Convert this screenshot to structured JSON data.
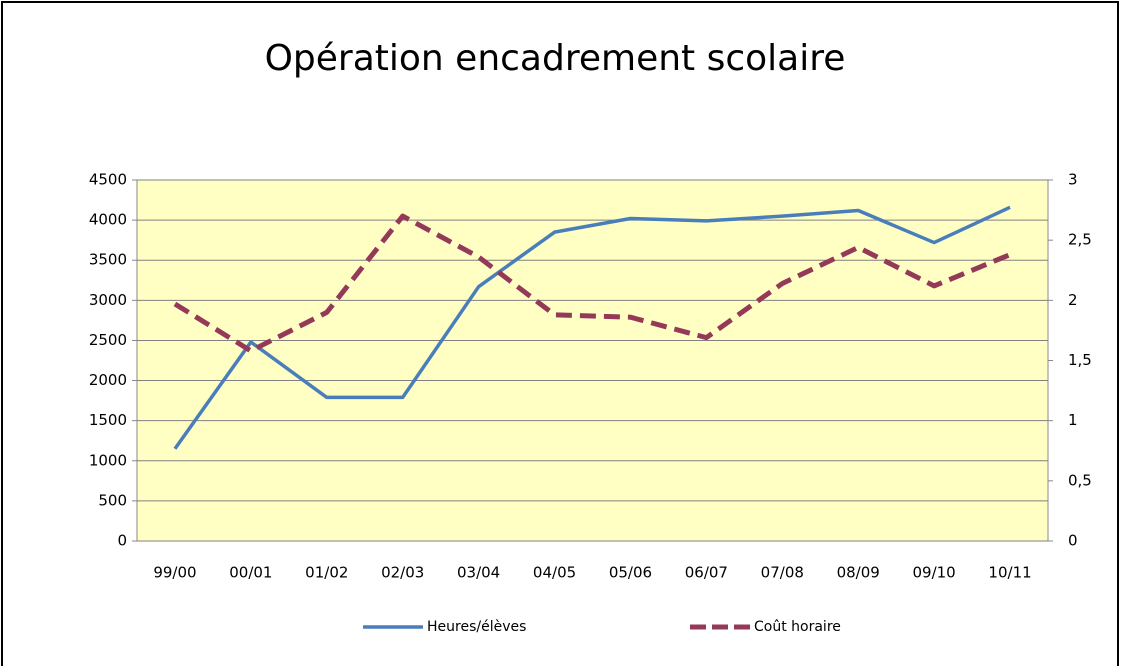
{
  "chart_data": {
    "type": "line",
    "title": "Opération encadrement scolaire",
    "categories": [
      "99/00",
      "00/01",
      "01/02",
      "02/03",
      "03/04",
      "04/05",
      "05/06",
      "06/07",
      "07/08",
      "08/09",
      "09/10",
      "10/11"
    ],
    "series": [
      {
        "name": "Heures/élèves",
        "color": "#4a7ebb",
        "dash": false,
        "values": [
          1150,
          2480,
          1790,
          1790,
          3170,
          3850,
          4020,
          3990,
          4050,
          4120,
          3720,
          4160
        ]
      },
      {
        "name": "Coût horaire",
        "color": "#953959",
        "dash": true,
        "axis": "y2",
        "values": [
          1.97,
          1.58,
          1.9,
          2.7,
          2.36,
          1.88,
          1.86,
          1.69,
          2.14,
          2.44,
          2.12,
          2.38
        ]
      }
    ],
    "ylim": [
      0,
      4500
    ],
    "yticks": [
      0,
      500,
      1000,
      1500,
      2000,
      2500,
      3000,
      3500,
      4000,
      4500
    ],
    "y2lim": [
      0,
      3
    ],
    "y2ticks": [
      0,
      {
        "value": 0.5,
        "label": "0,5"
      },
      1,
      {
        "value": 1.5,
        "label": "1,5"
      },
      2,
      {
        "value": 2.5,
        "label": "2,5"
      },
      3
    ],
    "grid": true,
    "legend": "bottom",
    "plot_background": "#ffffc4"
  }
}
